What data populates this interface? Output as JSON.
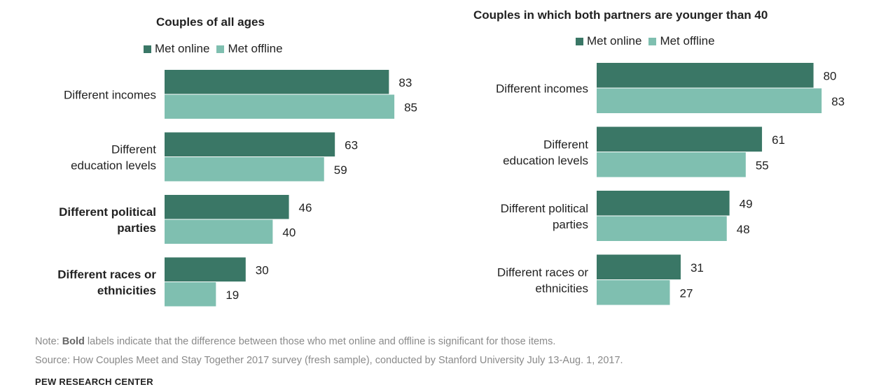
{
  "colors": {
    "online": "#3a7766",
    "offline": "#7fbfb0"
  },
  "legend": {
    "online": "Met online",
    "offline": "Met offline"
  },
  "note": {
    "prefix": "Note: ",
    "bold": "Bold",
    "rest": " labels indicate that the difference between those who met online and offline is significant for those items.",
    "source": "Source: How Couples Meet and Stay Together 2017 survey (fresh sample), conducted by Stanford University July 13-Aug. 1, 2017."
  },
  "brand": "PEW RESEARCH CENTER",
  "chart_data": [
    {
      "type": "bar",
      "orientation": "horizontal",
      "title": "Couples of all ages",
      "categories": [
        {
          "lines": [
            "Different incomes"
          ],
          "bold": false
        },
        {
          "lines": [
            "Different",
            "education levels"
          ],
          "bold": false
        },
        {
          "lines": [
            "Different political",
            "parties"
          ],
          "bold": true
        },
        {
          "lines": [
            "Different races or",
            "ethnicities"
          ],
          "bold": true
        }
      ],
      "series": [
        {
          "name": "Met online",
          "values": [
            83,
            63,
            46,
            30
          ]
        },
        {
          "name": "Met offline",
          "values": [
            85,
            59,
            40,
            19
          ]
        }
      ]
    },
    {
      "type": "bar",
      "orientation": "horizontal",
      "title": "Couples in which both partners are younger than 40",
      "categories": [
        {
          "lines": [
            "Different incomes"
          ],
          "bold": false
        },
        {
          "lines": [
            "Different",
            "education levels"
          ],
          "bold": false
        },
        {
          "lines": [
            "Different political",
            "parties"
          ],
          "bold": false
        },
        {
          "lines": [
            "Different races or",
            "ethnicities"
          ],
          "bold": false
        }
      ],
      "series": [
        {
          "name": "Met online",
          "values": [
            80,
            61,
            49,
            31
          ]
        },
        {
          "name": "Met offline",
          "values": [
            83,
            55,
            48,
            27
          ]
        }
      ]
    }
  ]
}
